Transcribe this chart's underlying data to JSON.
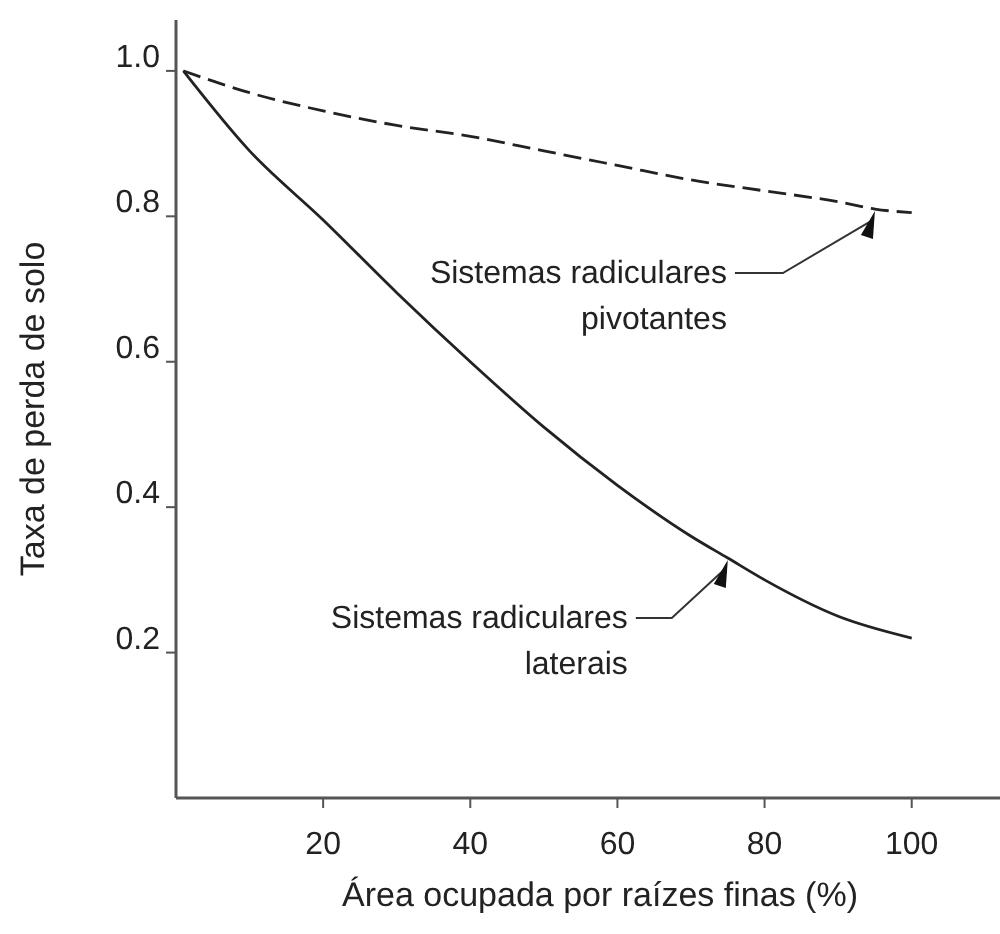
{
  "chart_data": {
    "type": "line",
    "xlabel": "Área ocupada por raízes finas (%)",
    "ylabel": "Taxa de perda de solo",
    "xlim": [
      0,
      112
    ],
    "ylim": [
      0,
      1.07
    ],
    "xticks": [
      20,
      40,
      60,
      80,
      100
    ],
    "yticks": [
      0.2,
      0.4,
      0.6,
      0.8,
      {
        "value": 1,
        "label": "1.0"
      }
    ],
    "grid": false,
    "marker": "none",
    "series": [
      {
        "name": "Sistemas radiculares pivotantes",
        "color": "#222222",
        "line_style": "dashed",
        "x": [
          1,
          10,
          20,
          30,
          40,
          50,
          60,
          70,
          80,
          90,
          95,
          100
        ],
        "values": [
          1.0,
          0.97,
          0.945,
          0.925,
          0.91,
          0.89,
          0.87,
          0.85,
          0.835,
          0.82,
          0.81,
          0.805
        ]
      },
      {
        "name": "Sistemas radiculares laterais",
        "color": "#222222",
        "line_style": "solid",
        "x": [
          1,
          10,
          20,
          30,
          40,
          50,
          60,
          70,
          75,
          80,
          90,
          100
        ],
        "values": [
          1.0,
          0.89,
          0.795,
          0.695,
          0.6,
          0.51,
          0.43,
          0.36,
          0.33,
          0.3,
          0.25,
          0.22
        ]
      }
    ]
  }
}
